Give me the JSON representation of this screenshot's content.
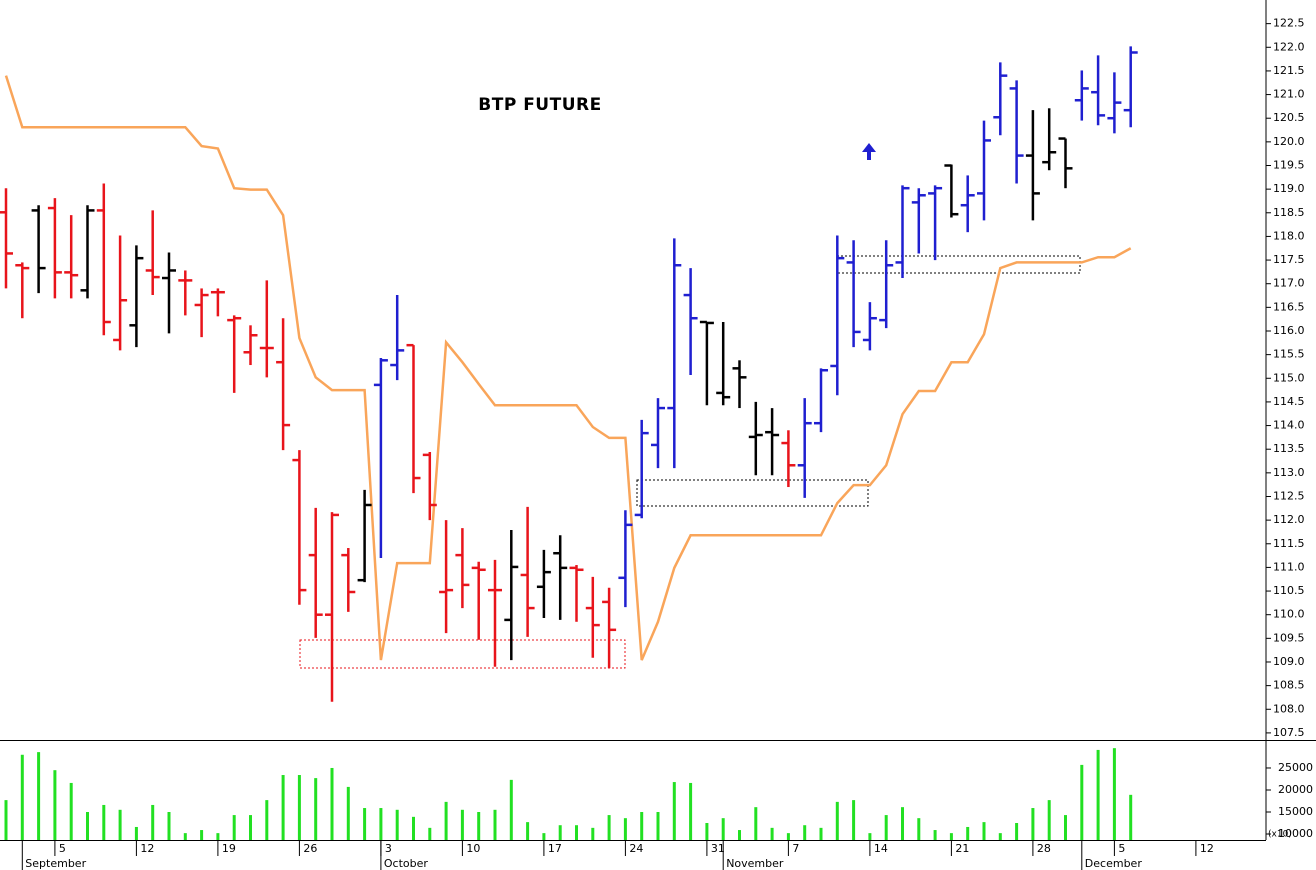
{
  "chart_data": [
    {
      "type": "ohlc",
      "title": "BTP FUTURE",
      "categories": [
        null,
        null,
        null,
        "5",
        null,
        null,
        null,
        null,
        "12",
        null,
        null,
        null,
        null,
        "19",
        null,
        null,
        null,
        null,
        "26",
        null,
        null,
        null,
        null,
        "3",
        null,
        null,
        null,
        null,
        "10",
        null,
        null,
        null,
        null,
        "17",
        null,
        null,
        null,
        null,
        "24",
        null,
        null,
        null,
        null,
        "31",
        null,
        null,
        null,
        null,
        "7",
        null,
        null,
        null,
        null,
        "14",
        null,
        null,
        null,
        null,
        "21",
        null,
        null,
        null,
        null,
        "28",
        null,
        null,
        null,
        null,
        "5",
        null,
        null,
        null,
        null,
        "12",
        null,
        null,
        null,
        null
      ],
      "months": [
        null,
        "September",
        null,
        null,
        null,
        null,
        null,
        null,
        null,
        null,
        null,
        null,
        null,
        null,
        null,
        null,
        null,
        null,
        null,
        null,
        null,
        null,
        null,
        "October",
        null,
        null,
        null,
        null,
        null,
        null,
        null,
        null,
        null,
        null,
        null,
        null,
        null,
        null,
        null,
        null,
        null,
        null,
        null,
        null,
        "November",
        null,
        null,
        null,
        null,
        null,
        null,
        null,
        null,
        null,
        null,
        null,
        null,
        null,
        null,
        null,
        null,
        null,
        null,
        null,
        null,
        null,
        "December",
        null,
        null,
        null,
        null,
        null,
        null,
        null,
        null,
        null,
        null,
        null
      ],
      "open": [
        118.51,
        117.39,
        118.55,
        118.6,
        117.24,
        116.86,
        118.55,
        115.81,
        116.12,
        117.28,
        117.12,
        117.07,
        116.55,
        116.82,
        116.23,
        115.55,
        115.64,
        115.34,
        113.27,
        111.26,
        110.0,
        111.26,
        110.73,
        114.86,
        115.28,
        115.7,
        113.38,
        110.48,
        111.26,
        110.99,
        110.52,
        109.89,
        110.84,
        110.59,
        111.3,
        110.99,
        110.14,
        110.27,
        110.78,
        112.11,
        113.59,
        114.37,
        116.76,
        116.19,
        114.69,
        115.21,
        113.76,
        113.86,
        113.63,
        113.16,
        114.05,
        115.26,
        117.45,
        115.81,
        116.23,
        117.45,
        118.72,
        118.91,
        119.5,
        118.66,
        118.91,
        120.52,
        121.13,
        119.71,
        119.57,
        120.07,
        120.88,
        121.05,
        120.5,
        120.67,
        null,
        null,
        null,
        null,
        null,
        null,
        null,
        null
      ],
      "high": [
        119.02,
        117.45,
        118.66,
        118.81,
        118.45,
        118.66,
        119.12,
        118.02,
        117.81,
        118.55,
        117.66,
        117.28,
        116.9,
        116.9,
        116.33,
        116.12,
        117.07,
        116.27,
        113.48,
        112.26,
        112.17,
        111.41,
        112.64,
        115.43,
        116.76,
        115.7,
        113.44,
        112.0,
        111.83,
        111.12,
        111.16,
        111.79,
        112.28,
        111.37,
        111.68,
        111.05,
        110.8,
        110.57,
        112.21,
        114.12,
        114.58,
        117.96,
        117.33,
        116.19,
        116.19,
        115.38,
        114.5,
        114.37,
        113.9,
        114.58,
        115.21,
        118.02,
        117.92,
        116.61,
        117.92,
        119.08,
        119.02,
        119.08,
        119.52,
        119.29,
        120.45,
        121.68,
        121.3,
        120.67,
        120.71,
        120.07,
        121.51,
        121.83,
        121.47,
        122.02,
        null,
        null,
        null,
        null,
        null,
        null,
        null,
        null
      ],
      "low": [
        116.9,
        116.27,
        116.8,
        116.69,
        116.69,
        116.69,
        115.91,
        115.59,
        115.66,
        116.76,
        115.95,
        116.33,
        115.87,
        116.31,
        114.69,
        115.28,
        115.02,
        113.48,
        110.21,
        109.51,
        108.16,
        110.06,
        110.69,
        111.2,
        114.96,
        112.57,
        112.0,
        109.61,
        110.14,
        109.47,
        108.9,
        109.04,
        109.53,
        109.93,
        109.89,
        109.85,
        109.09,
        108.87,
        110.16,
        112.04,
        113.1,
        113.1,
        115.07,
        114.43,
        114.43,
        114.37,
        112.95,
        112.95,
        112.7,
        112.47,
        113.86,
        114.64,
        115.66,
        115.59,
        116.06,
        117.12,
        117.64,
        117.5,
        118.4,
        118.09,
        118.34,
        120.14,
        119.12,
        118.34,
        119.4,
        119.02,
        120.45,
        120.35,
        120.18,
        120.31,
        null,
        null,
        null,
        null,
        null,
        null,
        null,
        null
      ],
      "close": [
        117.64,
        117.33,
        117.33,
        117.24,
        117.18,
        118.55,
        116.19,
        116.65,
        117.54,
        117.14,
        117.28,
        117.07,
        116.76,
        116.82,
        116.27,
        115.91,
        115.64,
        114.01,
        110.52,
        110.0,
        112.11,
        110.48,
        112.32,
        115.38,
        115.59,
        112.89,
        112.32,
        110.52,
        110.63,
        110.95,
        110.52,
        111.01,
        110.14,
        110.9,
        110.99,
        110.95,
        109.78,
        109.68,
        111.9,
        113.84,
        114.37,
        117.39,
        116.27,
        116.17,
        114.6,
        115.02,
        113.8,
        113.8,
        113.16,
        114.05,
        115.17,
        117.54,
        115.98,
        116.27,
        117.39,
        119.02,
        118.87,
        119.02,
        118.47,
        118.87,
        120.03,
        121.4,
        119.71,
        118.91,
        119.78,
        119.44,
        121.13,
        120.56,
        120.83,
        121.89,
        null,
        null,
        null,
        null,
        null,
        null,
        null,
        null
      ],
      "bar_colors": [
        "#e8141b",
        "#e8141b",
        "#000000",
        "#e8141b",
        "#e8141b",
        "#000000",
        "#e8141b",
        "#e8141b",
        "#000000",
        "#e8141b",
        "#000000",
        "#e8141b",
        "#e8141b",
        "#e8141b",
        "#e8141b",
        "#e8141b",
        "#e8141b",
        "#e8141b",
        "#e8141b",
        "#e8141b",
        "#e8141b",
        "#e8141b",
        "#000000",
        "#1f1fd0",
        "#1f1fd0",
        "#e8141b",
        "#e8141b",
        "#e8141b",
        "#e8141b",
        "#e8141b",
        "#e8141b",
        "#000000",
        "#e8141b",
        "#000000",
        "#000000",
        "#e8141b",
        "#e8141b",
        "#e8141b",
        "#1f1fd0",
        "#1f1fd0",
        "#1f1fd0",
        "#1f1fd0",
        "#1f1fd0",
        "#000000",
        "#000000",
        "#000000",
        "#000000",
        "#000000",
        "#e8141b",
        "#1f1fd0",
        "#1f1fd0",
        "#1f1fd0",
        "#1f1fd0",
        "#1f1fd0",
        "#1f1fd0",
        "#1f1fd0",
        "#1f1fd0",
        "#1f1fd0",
        "#000000",
        "#1f1fd0",
        "#1f1fd0",
        "#1f1fd0",
        "#1f1fd0",
        "#000000",
        "#000000",
        "#000000",
        "#1f1fd0",
        "#1f1fd0",
        "#1f1fd0",
        "#1f1fd0",
        null,
        null,
        null,
        null,
        null,
        null,
        null,
        null
      ],
      "overlay": {
        "color": "#f9a55a",
        "values": [
          121.4,
          120.31,
          120.31,
          120.31,
          120.31,
          120.31,
          120.31,
          120.31,
          120.31,
          120.31,
          120.31,
          120.31,
          119.91,
          119.86,
          119.02,
          118.99,
          118.99,
          118.45,
          115.85,
          115.02,
          114.75,
          114.75,
          114.75,
          109.04,
          111.09,
          111.09,
          111.09,
          115.76,
          115.34,
          114.88,
          114.43,
          114.43,
          114.43,
          114.43,
          114.43,
          114.43,
          113.97,
          113.74,
          113.74,
          109.04,
          109.85,
          110.99,
          111.68,
          111.68,
          111.68,
          111.68,
          111.68,
          111.68,
          111.68,
          111.68,
          111.68,
          112.36,
          112.74,
          112.74,
          113.16,
          114.24,
          114.73,
          114.73,
          115.34,
          115.34,
          115.93,
          117.33,
          117.45,
          117.45,
          117.45,
          117.45,
          117.45,
          117.56,
          117.56,
          117.75,
          null,
          null,
          null,
          null,
          null,
          null,
          null,
          null
        ]
      },
      "ylim": [
        107.35,
        123.0
      ],
      "yticks": [
        107.5,
        {
          "value": 108,
          "label": "108.0"
        },
        108.5,
        {
          "value": 109,
          "label": "109.0"
        },
        109.5,
        {
          "value": 110,
          "label": "110.0"
        },
        110.5,
        {
          "value": 111,
          "label": "111.0"
        },
        111.5,
        {
          "value": 112,
          "label": "112.0"
        },
        112.5,
        {
          "value": 113,
          "label": "113.0"
        },
        113.5,
        {
          "value": 114,
          "label": "114.0"
        },
        114.5,
        {
          "value": 115,
          "label": "115.0"
        },
        115.5,
        {
          "value": 116,
          "label": "116.0"
        },
        116.5,
        {
          "value": 117,
          "label": "117.0"
        },
        117.5,
        {
          "value": 118,
          "label": "118.0"
        },
        118.5,
        {
          "value": 119,
          "label": "119.0"
        },
        119.5,
        {
          "value": 120,
          "label": "120.0"
        },
        120.5,
        {
          "value": 121,
          "label": "121.0"
        },
        121.5,
        {
          "value": 122,
          "label": "122.0"
        },
        122.5
      ]
    },
    {
      "type": "bar",
      "color": "#22e022",
      "unit_label": "(x10)",
      "values": [
        17700,
        28000,
        28600,
        24500,
        21600,
        15000,
        16600,
        15500,
        11600,
        16600,
        15000,
        10200,
        10900,
        10200,
        14300,
        14300,
        17700,
        23400,
        23400,
        22700,
        25000,
        20700,
        15900,
        15900,
        15500,
        13900,
        11400,
        17300,
        15500,
        15000,
        15500,
        22300,
        12700,
        10200,
        12000,
        12000,
        11400,
        14300,
        13600,
        15000,
        15000,
        21800,
        21600,
        12500,
        13600,
        10900,
        16100,
        11400,
        10200,
        12000,
        11400,
        17300,
        17700,
        10200,
        14300,
        16100,
        13600,
        10900,
        10200,
        11600,
        12700,
        10200,
        12500,
        15900,
        17700,
        14300,
        25700,
        29100,
        29500,
        18900
      ],
      "ylim": [
        8640,
        30900
      ],
      "yticks": [
        10000,
        15000,
        20000,
        25000
      ]
    }
  ]
}
